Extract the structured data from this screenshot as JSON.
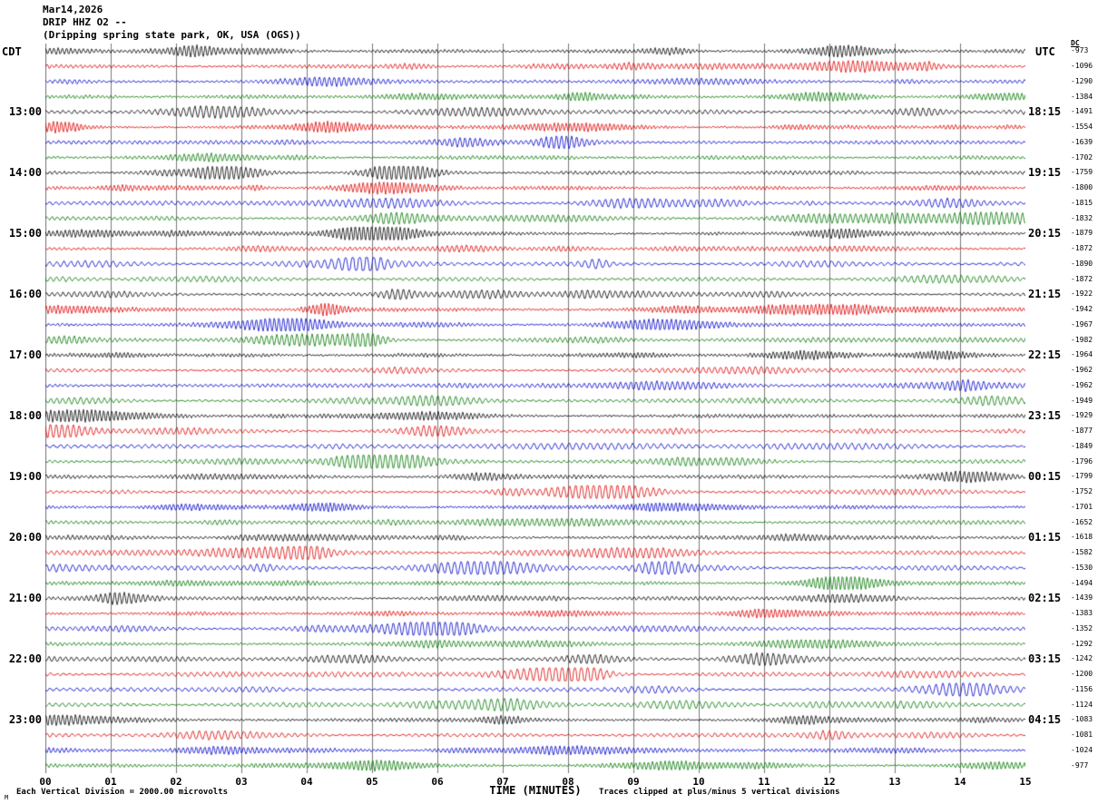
{
  "header": {
    "date": "Mar14,2026",
    "station": "DRIP HHZ O2 --",
    "location": "(Dripping spring state park, OK, USA (OGS))"
  },
  "axes": {
    "left_tz": "CDT",
    "right_tz": "UTC",
    "dc_header": "DC",
    "xlabel": "TIME (MINUTES)",
    "minute_labels": [
      "00",
      "01",
      "02",
      "03",
      "04",
      "05",
      "06",
      "07",
      "08",
      "09",
      "10",
      "11",
      "12",
      "13",
      "14",
      "15"
    ]
  },
  "footer": {
    "left": "Each Vertical Division = 2000.00 microvolts",
    "right": "Traces clipped at plus/minus 5 vertical divisions",
    "corner": "M"
  },
  "colors": {
    "trace_cycle": [
      "#000000",
      "#dd0000",
      "#0000cc",
      "#007700"
    ],
    "grid": "#7a7a7a",
    "background": "#ffffff"
  },
  "chart_data": {
    "type": "line",
    "title": "DRIP HHZ O2 helicorder, Dripping spring state park, OK, USA (OGS), Mar14,2026",
    "xlabel": "TIME (MINUTES)",
    "x_range": [
      0,
      15
    ],
    "minutes_per_row": 15,
    "n_rows": 48,
    "first_row_time_cdt": "12:00",
    "first_labeled_row": 4,
    "label_row_step": 4,
    "left_hour_labels": [
      "13:00",
      "14:00",
      "15:00",
      "16:00",
      "17:00",
      "18:00",
      "19:00",
      "20:00",
      "21:00",
      "22:00",
      "23:00"
    ],
    "right_utc_labels": [
      "18:15",
      "19:15",
      "20:15",
      "21:15",
      "22:15",
      "23:15",
      "00:15",
      "01:15",
      "02:15",
      "03:15",
      "04:15"
    ],
    "dc_values": [
      "-973",
      "-1096",
      "-1290",
      "-1384",
      "-1491",
      "-1554",
      "-1639",
      "-1702",
      "-1759",
      "-1800",
      "-1815",
      "-1832",
      "-1879",
      "-1872",
      "-1890",
      "-1872",
      "-1922",
      "-1942",
      "-1967",
      "-1982",
      "-1964",
      "-1962",
      "-1962",
      "-1949",
      "-1929",
      "-1877",
      "-1849",
      "-1796",
      "-1799",
      "-1752",
      "-1701",
      "-1652",
      "-1618",
      "-1582",
      "-1530",
      "-1494",
      "-1439",
      "-1383",
      "-1352",
      "-1292",
      "-1242",
      "-1200",
      "-1156",
      "-1124",
      "-1083",
      "-1081",
      "-1024",
      "-977"
    ],
    "vertical_division_microvolts": 2000.0,
    "clip_divisions": 5,
    "grid_minutes": 1
  }
}
